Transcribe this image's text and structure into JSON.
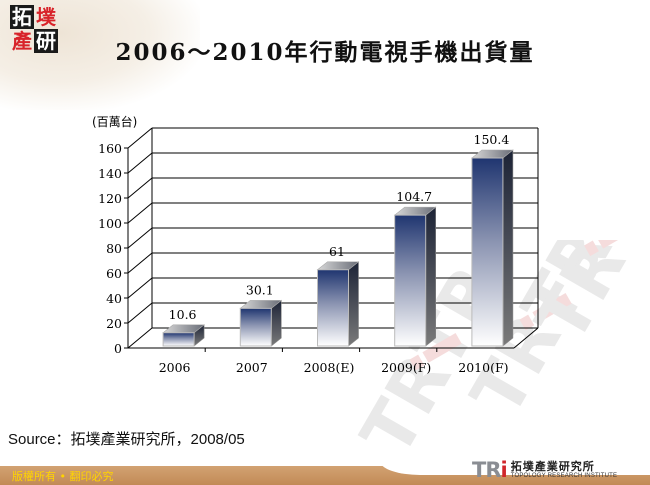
{
  "header": {
    "logo_chars": [
      "拓",
      "墣",
      "產",
      "研"
    ],
    "title": "2006～2010年行動電視手機出貨量"
  },
  "chart_data": {
    "type": "bar",
    "style": "3d-column",
    "title": "2006～2010年行動電視手機出貨量",
    "xlabel": "",
    "ylabel": "(百萬台)",
    "categories": [
      "2006",
      "2007",
      "2008(E)",
      "2009(F)",
      "2010(F)"
    ],
    "values": [
      10.6,
      30.1,
      61,
      104.7,
      150.4
    ],
    "value_labels": [
      "10.6",
      "30.1",
      "61",
      "104.7",
      "150.4"
    ],
    "ylim": [
      0,
      160
    ],
    "yticks": [
      0,
      20,
      40,
      60,
      80,
      100,
      120,
      140,
      160
    ],
    "ytick_labels": [
      "0",
      "20",
      "40",
      "60",
      "80",
      "100",
      "120",
      "140",
      "160"
    ],
    "grid": true,
    "legend": "none",
    "bar_color_top": "#1f3570",
    "bar_color_bottom": "#ffffff"
  },
  "source": {
    "text": "Source：拓墣產業研究所，2008/05"
  },
  "footer": {
    "copyright": "版權所有 • 翻印必究",
    "brand_mark": "TRi",
    "brand_name_zh": "拓墣產業研究所",
    "brand_name_en": "TOPOLOGY RESEARCH INSTITUTE"
  },
  "colors": {
    "footer_bar": "#c99660",
    "copyright_text": "#ffd400",
    "brand_red": "#d0262b"
  }
}
